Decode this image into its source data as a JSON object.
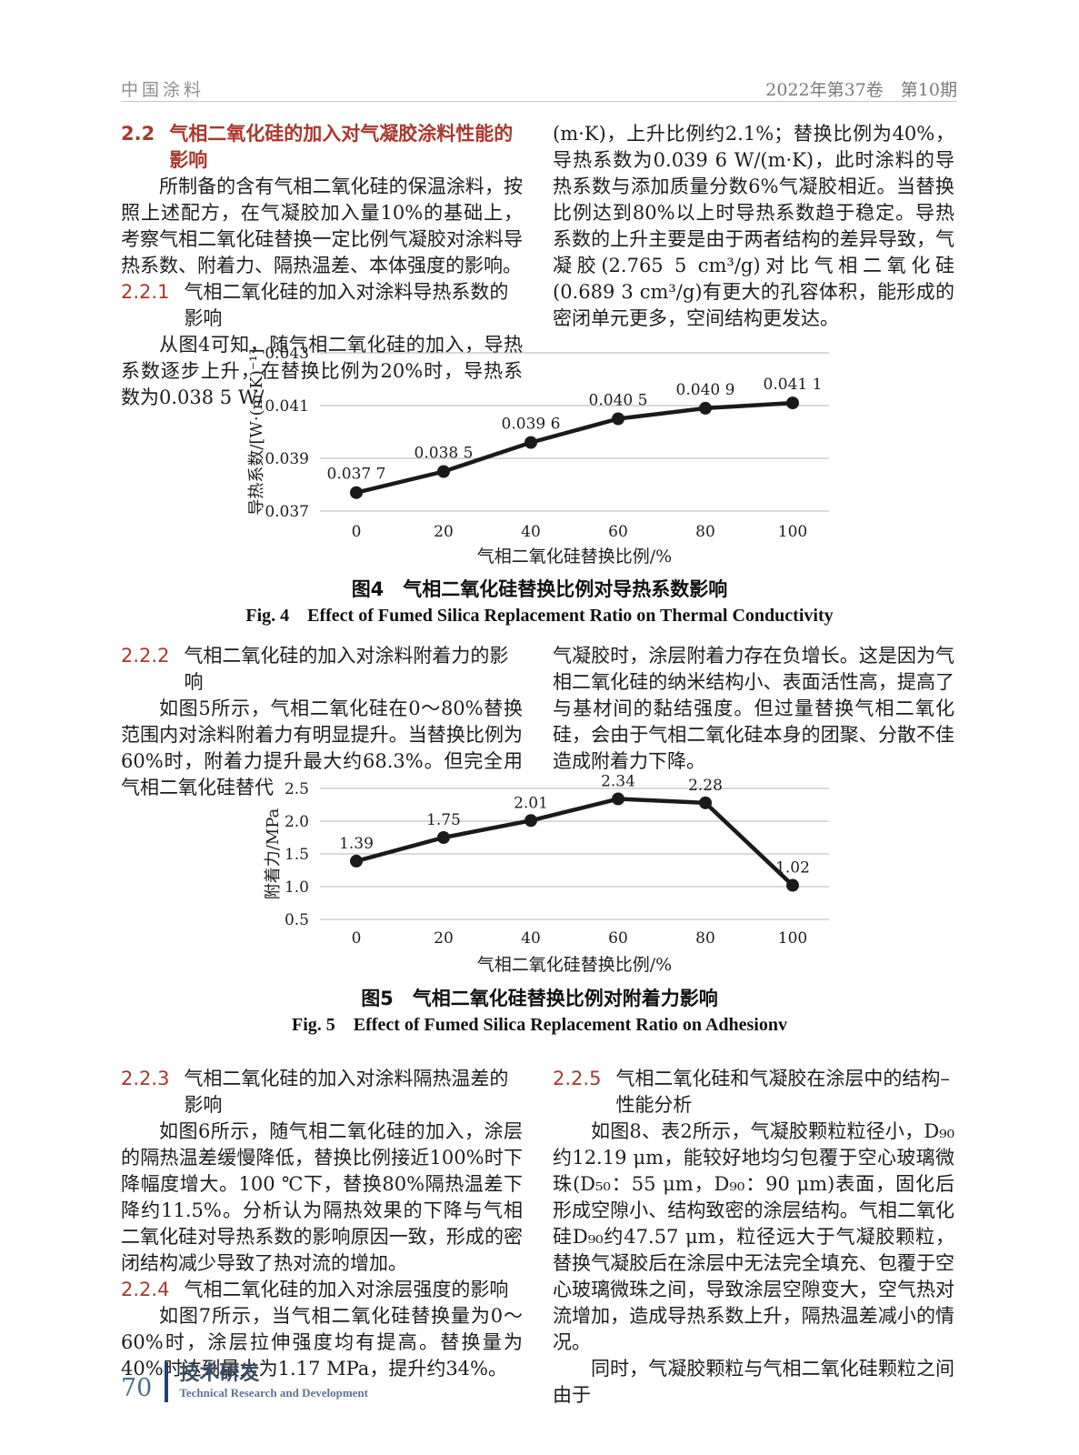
{
  "header": {
    "journal": "中国涂料",
    "issue": "2022年第37卷　第10期"
  },
  "sections": {
    "s22": {
      "num": "2.2",
      "title": "气相二氧化硅的加入对气凝胶涂料性能的影响"
    },
    "s221": {
      "num": "2.2.1",
      "title": "气相二氧化硅的加入对涂料导热系数的影响"
    },
    "s222": {
      "num": "2.2.2",
      "title": "气相二氧化硅的加入对涂料附着力的影响"
    },
    "s223": {
      "num": "2.2.3",
      "title": "气相二氧化硅的加入对涂料隔热温差的影响"
    },
    "s224": {
      "num": "2.2.4",
      "title": "气相二氧化硅的加入对涂层强度的影响"
    },
    "s225": {
      "num": "2.2.5",
      "title": "气相二氧化硅和气凝胶在涂层中的结构–性能分析"
    }
  },
  "paragraphs": {
    "p22_intro": "所制备的含有气相二氧化硅的保温涂料，按照上述配方，在气凝胶加入量10%的基础上，考察气相二氧化硅替换一定比例气凝胶对涂料导热系数、附着力、隔热温差、本体强度的影响。",
    "p221_left": "从图4可知，随气相二氧化硅的加入，导热系数逐步上升，在替换比例为20%时，导热系数为0.038 5 W/",
    "p221_right": "(m·K)，上升比例约2.1%；替换比例为40%，导热系数为0.039 6 W/(m·K)，此时涂料的导热系数与添加质量分数6%气凝胶相近。当替换比例达到80%以上时导热系数趋于稳定。导热系数的上升主要是由于两者结构的差异导致，气凝胶(2.765 5 cm³/g)对比气相二氧化硅(0.689 3 cm³/g)有更大的孔容体积，能形成的密闭单元更多，空间结构更发达。",
    "p222_left": "如图5所示，气相二氧化硅在0～80%替换范围内对涂料附着力有明显提升。当替换比例为60%时，附着力提升最大约68.3%。但完全用气相二氧化硅替代",
    "p222_right": "气凝胶时，涂层附着力存在负增长。这是因为气相二氧化硅的纳米结构小、表面活性高，提高了与基材间的黏结强度。但过量替换气相二氧化硅，会由于气相二氧化硅本身的团聚、分散不佳造成附着力下降。",
    "p223": "如图6所示，随气相二氧化硅的加入，涂层的隔热温差缓慢降低，替换比例接近100%时下降幅度增大。100 ℃下，替换80%隔热温差下降约11.5%。分析认为隔热效果的下降与气相二氧化硅对导热系数的影响原因一致，形成的密闭结构减少导致了热对流的增加。",
    "p224": "如图7所示，当气相二氧化硅替换量为0～60%时，涂层拉伸强度均有提高。替换量为40%时达到最大为1.17 MPa，提升约34%。",
    "p225_a": "如图8、表2所示，气凝胶颗粒粒径小，D₉₀约12.19 μm，能较好地均匀包覆于空心玻璃微珠(D₅₀：55 μm，D₉₀：90 μm)表面，固化后形成空隙小、结构致密的涂层结构。气相二氧化硅D₉₀约47.57 μm，粒径远大于气凝胶颗粒，替换气凝胶后在涂层中无法完全填充、包覆于空心玻璃微珠之间，导致涂层空隙变大，空气热对流增加，造成导热系数上升，隔热温差减小的情况。",
    "p225_b": "同时，气凝胶颗粒与气相二氧化硅颗粒之间由于"
  },
  "figures": {
    "fig4": {
      "caption_zh": "图4　气相二氧化硅替换比例对导热系数影响",
      "caption_en": "Fig. 4　Effect of Fumed Silica Replacement Ratio on Thermal Conductivity"
    },
    "fig5": {
      "caption_zh": "图5　气相二氧化硅替换比例对附着力影响",
      "caption_en": "Fig. 5　Effect of Fumed Silica Replacement Ratio on Adhesionv"
    }
  },
  "chart_data": [
    {
      "id": "fig4",
      "type": "line",
      "categories": [
        0,
        20,
        40,
        60,
        80,
        100
      ],
      "values": [
        0.0377,
        0.0385,
        0.0396,
        0.0405,
        0.0409,
        0.0411
      ],
      "point_labels": [
        "0.037 7",
        "0.038 5",
        "0.039 6",
        "0.040 5",
        "0.040 9",
        "0.041 1"
      ],
      "xlabel": "气相二氧化硅替换比例/%",
      "ylabel": "导热系数/[W·(m·K)⁻¹]",
      "ylim": [
        0.037,
        0.043
      ],
      "yticks": [
        0.037,
        0.039,
        0.041,
        0.043
      ],
      "ytick_labels": [
        "0.037",
        "0.039",
        "0.041",
        "0.043"
      ],
      "grid": true,
      "legend": "none",
      "line_color": "#1a1a1a",
      "marker": "circle"
    },
    {
      "id": "fig5",
      "type": "line",
      "categories": [
        0,
        20,
        40,
        60,
        80,
        100
      ],
      "values": [
        1.39,
        1.75,
        2.01,
        2.34,
        2.28,
        1.02
      ],
      "point_labels": [
        "1.39",
        "1.75",
        "2.01",
        "2.34",
        "2.28",
        "1.02"
      ],
      "xlabel": "气相二氧化硅替换比例/%",
      "ylabel": "附着力/MPa",
      "ylim": [
        0.5,
        2.5
      ],
      "yticks": [
        0.5,
        1.0,
        1.5,
        2.0,
        2.5
      ],
      "ytick_labels": [
        "0.5",
        "1.0",
        "1.5",
        "2.0",
        "2.5"
      ],
      "grid": true,
      "legend": "none",
      "line_color": "#1a1a1a",
      "marker": "circle"
    }
  ],
  "footer": {
    "page_number": "70",
    "section_zh": "技术研发",
    "section_en": "Technical Research and Development"
  }
}
